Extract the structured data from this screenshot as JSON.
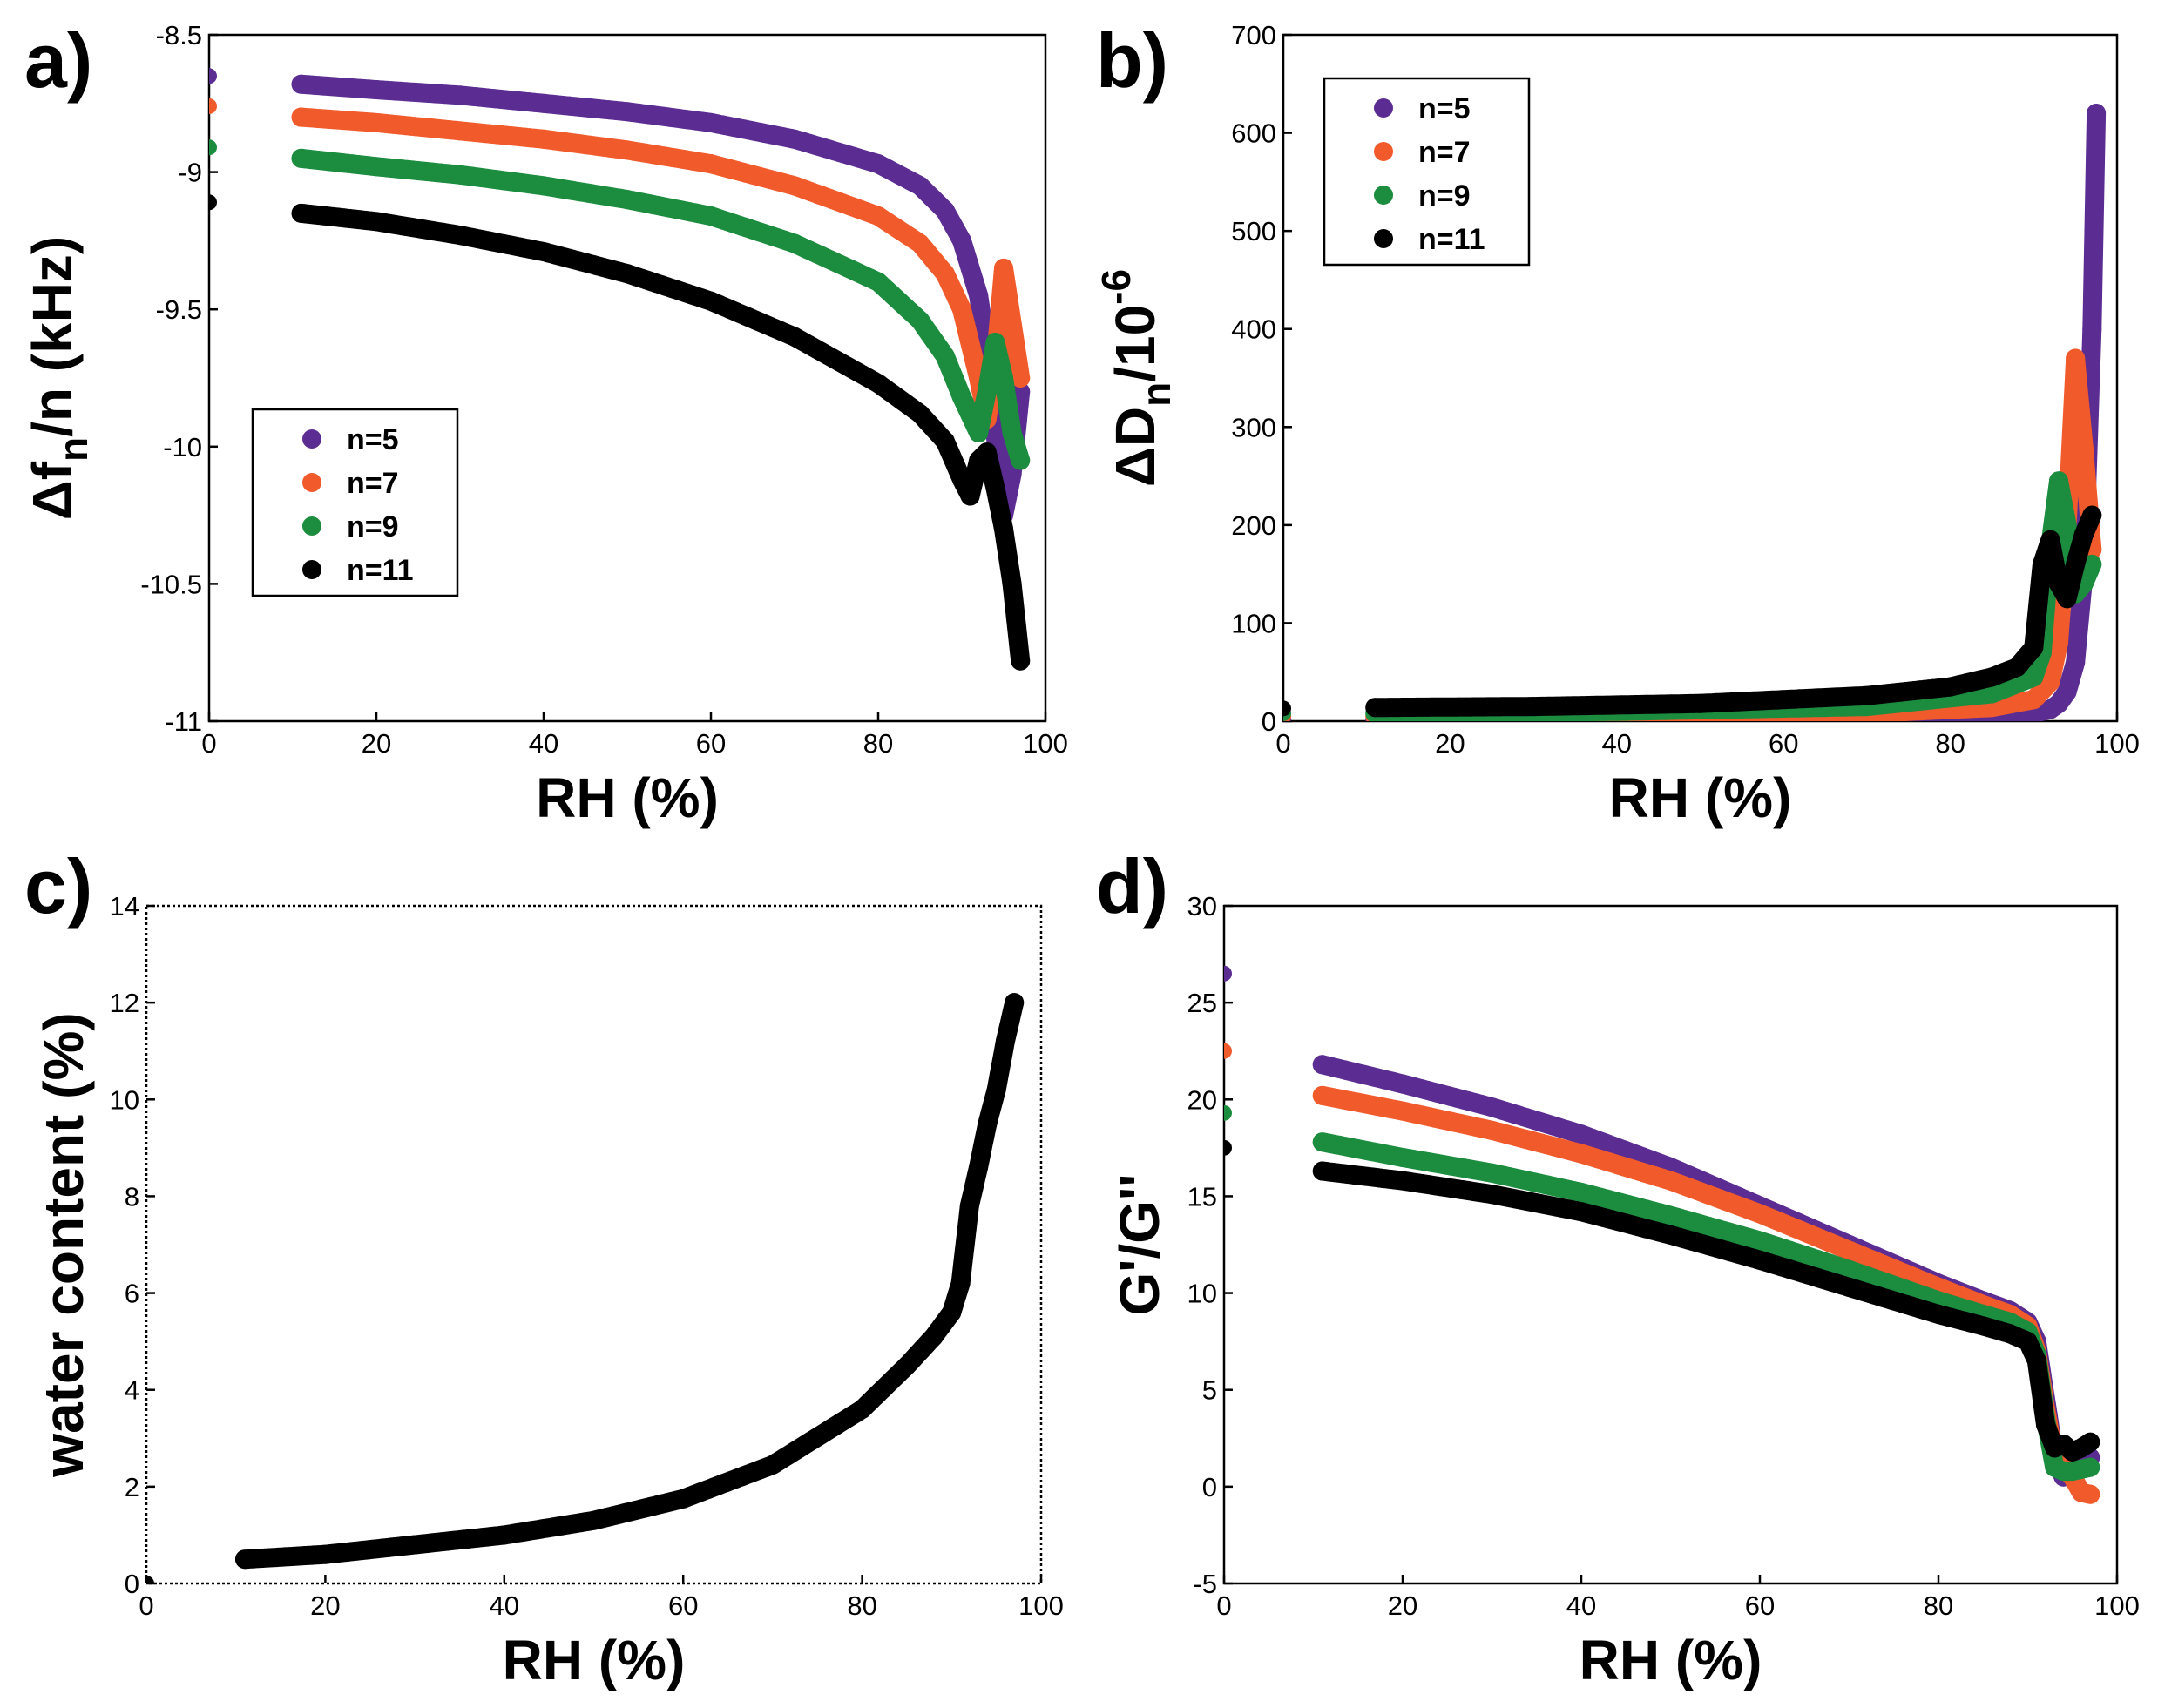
{
  "colors": {
    "n5": "#5b2c91",
    "n7": "#f15a2b",
    "n9": "#1c8c3f",
    "n11": "#000000"
  },
  "chart_data": [
    {
      "panel": "a)",
      "type": "scatter",
      "xlabel": "RH (%)",
      "ylabel": {
        "main": "Δf",
        "sub": "n",
        "rest": "/n (kHz)"
      },
      "xlim": [
        0,
        100
      ],
      "ylim": [
        -11,
        -8.5
      ],
      "xticks": [
        0,
        20,
        40,
        60,
        80,
        100
      ],
      "xtick_labels": [
        "0",
        "20",
        "40",
        "60",
        "80",
        "100"
      ],
      "yticks": [
        -8.5,
        -9,
        -9.5,
        -10,
        -10.5,
        -11
      ],
      "ytick_labels": [
        "-8.5",
        "-9",
        "-9.5",
        "-10",
        "-10.5",
        "-11"
      ],
      "legend": {
        "position": "lower-left",
        "entries": [
          "n=5",
          "n=7",
          "n=9",
          "n=11"
        ]
      },
      "series": [
        {
          "name": "n=5",
          "color": "#5b2c91",
          "initial": [
            0,
            -8.65
          ],
          "x": [
            11,
            20,
            30,
            40,
            50,
            60,
            70,
            80,
            85,
            88,
            90,
            92,
            93,
            94,
            95,
            96,
            97
          ],
          "y": [
            -8.68,
            -8.7,
            -8.72,
            -8.75,
            -8.78,
            -8.82,
            -8.88,
            -8.97,
            -9.05,
            -9.14,
            -9.25,
            -9.45,
            -9.65,
            -9.95,
            -10.25,
            -10.1,
            -9.8
          ]
        },
        {
          "name": "n=7",
          "color": "#f15a2b",
          "initial": [
            0,
            -8.76
          ],
          "x": [
            11,
            20,
            30,
            40,
            50,
            60,
            70,
            80,
            85,
            88,
            90,
            92,
            93,
            94,
            95,
            96,
            97
          ],
          "y": [
            -8.8,
            -8.82,
            -8.85,
            -8.88,
            -8.92,
            -8.97,
            -9.05,
            -9.16,
            -9.26,
            -9.37,
            -9.5,
            -9.75,
            -9.9,
            -9.7,
            -9.35,
            -9.55,
            -9.75
          ]
        },
        {
          "name": "n=9",
          "color": "#1c8c3f",
          "initial": [
            0,
            -8.91
          ],
          "x": [
            11,
            20,
            30,
            40,
            50,
            60,
            70,
            80,
            85,
            88,
            90,
            92,
            93,
            94,
            95,
            96,
            97
          ],
          "y": [
            -8.95,
            -8.98,
            -9.01,
            -9.05,
            -9.1,
            -9.16,
            -9.26,
            -9.4,
            -9.54,
            -9.67,
            -9.82,
            -9.95,
            -9.8,
            -9.62,
            -9.75,
            -9.95,
            -10.05
          ]
        },
        {
          "name": "n=11",
          "color": "#000000",
          "initial": [
            0,
            -9.11
          ],
          "x": [
            11,
            20,
            30,
            40,
            50,
            60,
            70,
            80,
            85,
            88,
            90,
            91,
            92,
            93,
            94,
            95,
            96,
            97
          ],
          "y": [
            -9.15,
            -9.18,
            -9.23,
            -9.29,
            -9.37,
            -9.47,
            -9.6,
            -9.77,
            -9.88,
            -9.98,
            -10.12,
            -10.18,
            -10.05,
            -10.02,
            -10.15,
            -10.3,
            -10.5,
            -10.78
          ]
        }
      ]
    },
    {
      "panel": "b)",
      "type": "scatter",
      "xlabel": "RH (%)",
      "ylabel": {
        "main": "ΔD",
        "sub": "n",
        "rest": "/10",
        "sup": "-6"
      },
      "xlim": [
        0,
        100
      ],
      "ylim": [
        0,
        700
      ],
      "xticks": [
        0,
        20,
        40,
        60,
        80,
        100
      ],
      "xtick_labels": [
        "0",
        "20",
        "40",
        "60",
        "80",
        "100"
      ],
      "yticks": [
        0,
        100,
        200,
        300,
        400,
        500,
        600,
        700
      ],
      "ytick_labels": [
        "0",
        "100",
        "200",
        "300",
        "400",
        "500",
        "600",
        "700"
      ],
      "legend": {
        "position": "top-left",
        "entries": [
          "n=5",
          "n=7",
          "n=9",
          "n=11"
        ]
      },
      "series": [
        {
          "name": "n=5",
          "color": "#5b2c91",
          "initial": [
            0,
            3
          ],
          "x": [
            11,
            40,
            70,
            85,
            90,
            92,
            93,
            94,
            95,
            96,
            97,
            97.5
          ],
          "y": [
            2,
            2,
            3,
            5,
            8,
            12,
            18,
            30,
            60,
            150,
            400,
            620
          ]
        },
        {
          "name": "n=7",
          "color": "#f15a2b",
          "initial": [
            0,
            5
          ],
          "x": [
            11,
            40,
            70,
            85,
            90,
            92,
            93,
            94,
            95,
            96,
            97
          ],
          "y": [
            5,
            6,
            8,
            14,
            22,
            40,
            80,
            200,
            370,
            280,
            175
          ]
        },
        {
          "name": "n=9",
          "color": "#1c8c3f",
          "initial": [
            0,
            8
          ],
          "x": [
            11,
            40,
            70,
            85,
            90,
            91,
            92,
            93,
            94,
            95,
            96,
            97
          ],
          "y": [
            8,
            10,
            15,
            28,
            45,
            70,
            180,
            245,
            200,
            130,
            140,
            160
          ]
        },
        {
          "name": "n=11",
          "color": "#000000",
          "initial": [
            0,
            13
          ],
          "x": [
            11,
            30,
            50,
            70,
            80,
            85,
            88,
            90,
            91,
            92,
            93,
            94,
            95,
            96,
            97
          ],
          "y": [
            14,
            15,
            18,
            26,
            35,
            45,
            55,
            75,
            160,
            185,
            140,
            125,
            160,
            190,
            210
          ]
        }
      ]
    },
    {
      "panel": "c)",
      "type": "scatter",
      "xlabel": "RH (%)",
      "ylabel": "water content (%)",
      "xlim": [
        0,
        100
      ],
      "ylim": [
        0,
        14
      ],
      "xticks": [
        0,
        20,
        40,
        60,
        80,
        100
      ],
      "xtick_labels": [
        "0",
        "20",
        "40",
        "60",
        "80",
        "100"
      ],
      "yticks": [
        0,
        2,
        4,
        6,
        8,
        10,
        12,
        14
      ],
      "ytick_labels": [
        "0",
        "2",
        "4",
        "6",
        "8",
        "10",
        "12",
        "14"
      ],
      "series": [
        {
          "name": "water content",
          "color": "#000000",
          "initial": [
            0,
            0
          ],
          "x": [
            11,
            20,
            30,
            40,
            50,
            60,
            70,
            80,
            85,
            88,
            90,
            91,
            92,
            93,
            94,
            95,
            96,
            97
          ],
          "y": [
            0.5,
            0.6,
            0.8,
            1.0,
            1.3,
            1.75,
            2.45,
            3.6,
            4.5,
            5.1,
            5.6,
            6.2,
            7.8,
            8.6,
            9.5,
            10.2,
            11.2,
            12.0
          ]
        }
      ]
    },
    {
      "panel": "d)",
      "type": "scatter",
      "xlabel": "RH (%)",
      "ylabel": "G'/G''",
      "xlim": [
        0,
        100
      ],
      "ylim": [
        -5,
        30
      ],
      "xticks": [
        0,
        20,
        40,
        60,
        80,
        100
      ],
      "xtick_labels": [
        "0",
        "20",
        "40",
        "60",
        "80",
        "100"
      ],
      "yticks": [
        -5,
        0,
        5,
        10,
        15,
        20,
        25,
        30
      ],
      "ytick_labels": [
        "-5",
        "0",
        "5",
        "10",
        "15",
        "20",
        "25",
        "30"
      ],
      "series": [
        {
          "name": "n=5",
          "color": "#5b2c91",
          "initial": [
            0,
            26.5
          ],
          "x": [
            11,
            20,
            30,
            40,
            50,
            60,
            70,
            80,
            85,
            88,
            90,
            91,
            92,
            93,
            94,
            95,
            96,
            97
          ],
          "y": [
            21.8,
            20.8,
            19.6,
            18.2,
            16.5,
            14.5,
            12.5,
            10.5,
            9.6,
            9.1,
            8.5,
            7.5,
            4.5,
            1.5,
            0.5,
            0.8,
            1.2,
            1.5
          ]
        },
        {
          "name": "n=7",
          "color": "#f15a2b",
          "initial": [
            0,
            22.5
          ],
          "x": [
            11,
            20,
            30,
            40,
            50,
            60,
            70,
            80,
            85,
            88,
            90,
            91,
            92,
            93,
            94,
            95,
            96,
            97
          ],
          "y": [
            20.2,
            19.4,
            18.4,
            17.2,
            15.8,
            14.1,
            12.2,
            10.3,
            9.4,
            8.9,
            8.3,
            7.0,
            4.0,
            1.5,
            1.0,
            0.5,
            -0.3,
            -0.4
          ]
        },
        {
          "name": "n=9",
          "color": "#1c8c3f",
          "initial": [
            0,
            19.3
          ],
          "x": [
            11,
            20,
            30,
            40,
            50,
            60,
            70,
            80,
            85,
            88,
            90,
            91,
            92,
            93,
            94,
            95,
            96,
            97
          ],
          "y": [
            17.8,
            17.0,
            16.2,
            15.2,
            14.0,
            12.7,
            11.2,
            9.6,
            8.9,
            8.5,
            8.0,
            6.8,
            3.5,
            1.0,
            0.8,
            0.8,
            0.9,
            1.0
          ]
        },
        {
          "name": "n=11",
          "color": "#000000",
          "initial": [
            0,
            17.5
          ],
          "x": [
            11,
            20,
            30,
            40,
            50,
            60,
            70,
            80,
            85,
            88,
            90,
            91,
            92,
            93,
            94,
            95,
            96,
            97
          ],
          "y": [
            16.3,
            15.8,
            15.1,
            14.2,
            13.0,
            11.7,
            10.3,
            8.9,
            8.3,
            7.9,
            7.5,
            6.5,
            3.2,
            2.0,
            2.2,
            1.8,
            2.0,
            2.3
          ]
        }
      ]
    }
  ]
}
